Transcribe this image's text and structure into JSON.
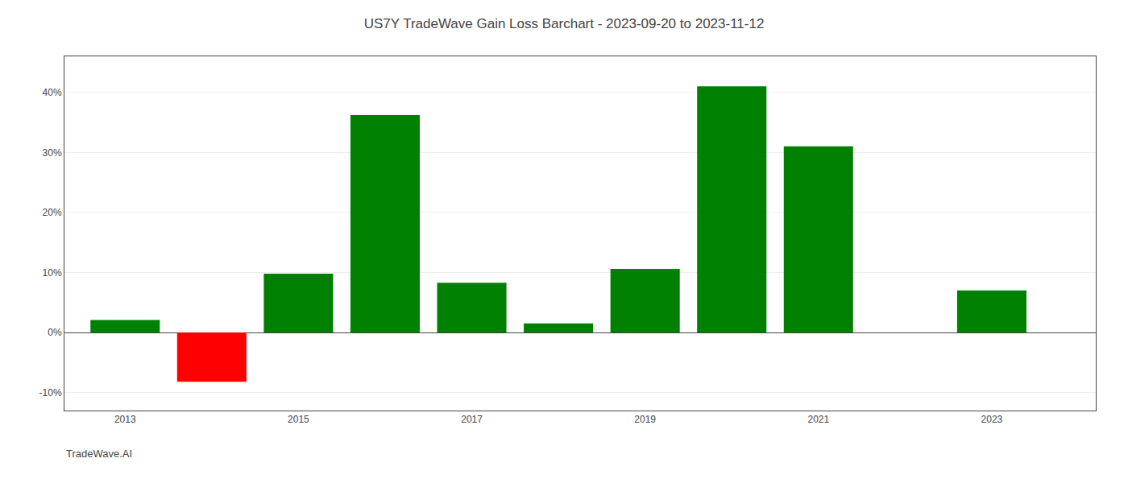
{
  "chart_data": {
    "type": "bar",
    "title": "US7Y TradeWave Gain Loss Barchart - 2023-09-20 to 2023-11-12",
    "annotations": [
      {
        "text": "TradeWave.AI"
      }
    ],
    "x": [
      2013,
      2014,
      2015,
      2016,
      2017,
      2018,
      2019,
      2020,
      2021,
      2022,
      2023
    ],
    "values": [
      2.1,
      -8.2,
      9.8,
      36.2,
      8.3,
      1.5,
      10.6,
      41.0,
      31.0,
      0.0,
      7.0
    ],
    "colors": [
      "#008000",
      "#ff0000",
      "#008000",
      "#008000",
      "#008000",
      "#008000",
      "#008000",
      "#008000",
      "#008000",
      "#008000",
      "#008000"
    ],
    "xlim": [
      2012.3,
      2024.2
    ],
    "xticks": [
      2013,
      2015,
      2017,
      2019,
      2021,
      2023
    ],
    "ylim": [
      -13,
      46
    ],
    "yticks": [
      {
        "value": -10,
        "label": "-10%"
      },
      {
        "value": 0,
        "label": "0%"
      },
      {
        "value": 10,
        "label": "10%"
      },
      {
        "value": 20,
        "label": "20%"
      },
      {
        "value": 30,
        "label": "30%"
      },
      {
        "value": 40,
        "label": "40%"
      }
    ],
    "grid": true
  }
}
